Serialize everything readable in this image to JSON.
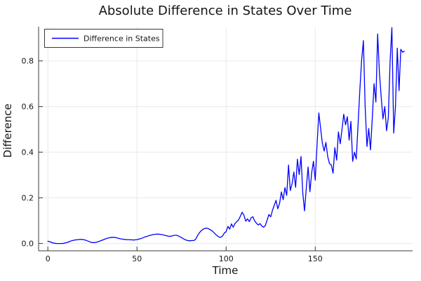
{
  "figure": {
    "background": "#ffffff",
    "title": "Absolute Difference in States Over Time"
  },
  "colors": {
    "series_blue": "#0000ff",
    "grid": "#e9e9e9",
    "spine": "#383838",
    "text": "#151515",
    "legend_background": "#ffffff",
    "legend_border": "#383838"
  },
  "chart_data": {
    "type": "line",
    "title": "Absolute Difference in States Over Time",
    "xlabel": "Time",
    "ylabel": "Difference",
    "xlim": [
      -5.2,
      204.6
    ],
    "ylim": [
      -0.032,
      0.95
    ],
    "grid": true,
    "legend_position": "top-left",
    "x_ticks": [
      {
        "label": "0",
        "value": 0
      },
      {
        "label": "50",
        "value": 50
      },
      {
        "label": "100",
        "value": 100
      },
      {
        "label": "150",
        "value": 150
      }
    ],
    "y_ticks": [
      {
        "label": "0.0",
        "value": 0.0
      },
      {
        "label": "0.2",
        "value": 0.2
      },
      {
        "label": "0.4",
        "value": 0.4
      },
      {
        "label": "0.6",
        "value": 0.6
      },
      {
        "label": "0.8",
        "value": 0.8
      }
    ],
    "series": [
      {
        "name": "Difference in States",
        "color": "#0000ff",
        "x_start": 0,
        "x_step": 1,
        "values": [
          0.01,
          0.008,
          0.005,
          0.002,
          0.001,
          0.0,
          0.0,
          0.0,
          0.0,
          0.001,
          0.003,
          0.005,
          0.008,
          0.011,
          0.013,
          0.015,
          0.016,
          0.017,
          0.018,
          0.018,
          0.017,
          0.015,
          0.012,
          0.009,
          0.006,
          0.004,
          0.004,
          0.005,
          0.007,
          0.01,
          0.013,
          0.016,
          0.019,
          0.022,
          0.024,
          0.026,
          0.027,
          0.027,
          0.026,
          0.024,
          0.022,
          0.02,
          0.019,
          0.018,
          0.017,
          0.017,
          0.016,
          0.016,
          0.015,
          0.016,
          0.017,
          0.019,
          0.021,
          0.024,
          0.027,
          0.03,
          0.032,
          0.035,
          0.037,
          0.039,
          0.04,
          0.041,
          0.041,
          0.04,
          0.039,
          0.037,
          0.035,
          0.033,
          0.031,
          0.032,
          0.034,
          0.036,
          0.036,
          0.034,
          0.03,
          0.026,
          0.021,
          0.017,
          0.014,
          0.012,
          0.012,
          0.013,
          0.013,
          0.02,
          0.035,
          0.047,
          0.056,
          0.062,
          0.066,
          0.067,
          0.065,
          0.061,
          0.056,
          0.049,
          0.041,
          0.034,
          0.028,
          0.027,
          0.033,
          0.046,
          0.052,
          0.075,
          0.063,
          0.086,
          0.071,
          0.088,
          0.096,
          0.103,
          0.12,
          0.137,
          0.123,
          0.098,
          0.108,
          0.096,
          0.112,
          0.117,
          0.099,
          0.089,
          0.081,
          0.087,
          0.077,
          0.071,
          0.079,
          0.102,
          0.127,
          0.117,
          0.145,
          0.168,
          0.189,
          0.152,
          0.176,
          0.226,
          0.192,
          0.245,
          0.211,
          0.344,
          0.232,
          0.262,
          0.313,
          0.246,
          0.369,
          0.302,
          0.381,
          0.222,
          0.143,
          0.246,
          0.335,
          0.227,
          0.31,
          0.36,
          0.277,
          0.43,
          0.572,
          0.505,
          0.44,
          0.405,
          0.443,
          0.38,
          0.35,
          0.344,
          0.308,
          0.42,
          0.365,
          0.489,
          0.437,
          0.5,
          0.566,
          0.52,
          0.556,
          0.453,
          0.535,
          0.36,
          0.4,
          0.37,
          0.52,
          0.67,
          0.8,
          0.889,
          0.6,
          0.425,
          0.504,
          0.41,
          0.55,
          0.7,
          0.62,
          0.918,
          0.75,
          0.64,
          0.546,
          0.6,
          0.494,
          0.55,
          0.8,
          0.946,
          0.484,
          0.6,
          0.856,
          0.67,
          0.851,
          0.838,
          0.843
        ]
      }
    ]
  },
  "legend": {
    "entries": [
      {
        "label": "Difference in States",
        "color": "#0000ff"
      }
    ]
  }
}
